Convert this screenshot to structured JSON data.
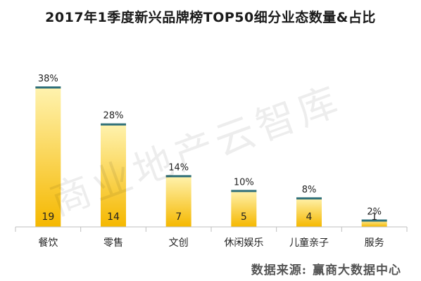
{
  "watermark_text": "商业地产云智库",
  "source": {
    "label": "数据来源:",
    "name": "赢商大数据中心"
  },
  "colors": {
    "bar_top": "#fff3b0",
    "bar_bottom": "#f5b800",
    "cap": "#2e6f7a",
    "axis": "#bfbfbf"
  },
  "chart_data": {
    "type": "bar",
    "title": "2017年1季度新兴品牌榜TOP50细分业态数量&占比",
    "categories": [
      "餐饮",
      "零售",
      "文创",
      "休闲娱乐",
      "儿童亲子",
      "服务"
    ],
    "series": [
      {
        "values": [
          19,
          14,
          7,
          5,
          4,
          1
        ]
      },
      {
        "values": [
          "38%",
          "28%",
          "14%",
          "10%",
          "8%",
          "2%"
        ]
      }
    ],
    "grid": false,
    "legend": "none"
  }
}
